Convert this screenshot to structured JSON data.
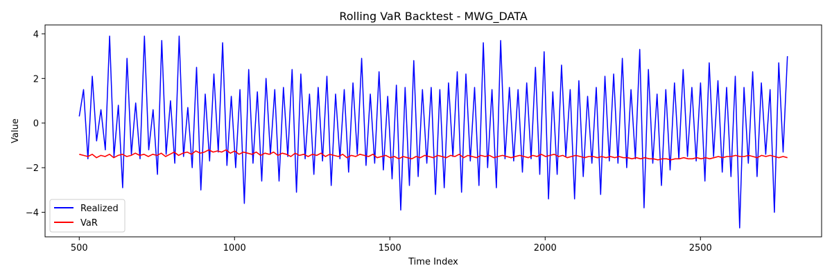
{
  "chart_data": {
    "type": "line",
    "title": "Rolling VaR Backtest - MWG_DATA",
    "xlabel": "Time Index",
    "ylabel": "Value",
    "xlim": [
      390,
      2890
    ],
    "ylim": [
      -5.1,
      4.4
    ],
    "xticks": [
      500,
      1000,
      1500,
      2000,
      2500
    ],
    "yticks": [
      -4,
      -2,
      0,
      2,
      4
    ],
    "grid": false,
    "legend_position": "lower-left",
    "x_range": [
      500,
      2780
    ],
    "series": [
      {
        "name": "Realized",
        "color": "#0000ff",
        "sampling": "approximate, every 20 time steps",
        "values": [
          0.3,
          1.5,
          -1.6,
          2.1,
          -0.8,
          0.6,
          -1.2,
          3.9,
          -1.5,
          0.8,
          -2.9,
          2.9,
          -1.4,
          0.9,
          -1.6,
          3.9,
          -1.2,
          0.6,
          -2.3,
          3.7,
          -1.4,
          1.0,
          -1.8,
          3.9,
          -1.5,
          0.7,
          -2.0,
          2.5,
          -3.0,
          1.3,
          -1.7,
          2.2,
          -1.3,
          3.6,
          -1.9,
          1.2,
          -2.0,
          1.5,
          -3.6,
          2.4,
          -1.8,
          1.4,
          -2.6,
          2.0,
          -1.4,
          1.5,
          -2.6,
          1.6,
          -1.5,
          2.4,
          -3.1,
          2.2,
          -1.6,
          1.3,
          -2.3,
          1.6,
          -1.7,
          2.1,
          -2.8,
          1.3,
          -1.6,
          1.5,
          -2.2,
          1.8,
          -1.4,
          2.9,
          -1.9,
          1.3,
          -1.8,
          2.3,
          -2.1,
          1.2,
          -2.5,
          1.7,
          -3.9,
          1.6,
          -2.8,
          2.8,
          -2.4,
          1.5,
          -1.8,
          1.6,
          -3.2,
          1.5,
          -2.9,
          1.8,
          -1.5,
          2.3,
          -3.1,
          2.2,
          -1.7,
          1.6,
          -2.8,
          3.6,
          -2.0,
          1.5,
          -2.9,
          3.7,
          -1.6,
          1.6,
          -1.7,
          1.5,
          -2.2,
          1.8,
          -1.6,
          2.5,
          -2.3,
          3.2,
          -3.4,
          1.4,
          -2.3,
          2.6,
          -1.5,
          1.5,
          -3.4,
          1.9,
          -2.4,
          1.2,
          -1.8,
          1.6,
          -3.2,
          2.1,
          -1.7,
          2.2,
          -1.8,
          2.9,
          -2.0,
          1.5,
          -1.6,
          3.3,
          -3.8,
          2.4,
          -1.8,
          1.3,
          -2.8,
          1.5,
          -2.1,
          1.8,
          -1.6,
          2.4,
          -1.5,
          1.6,
          -1.7,
          1.8,
          -2.6,
          2.7,
          -1.5,
          1.9,
          -2.2,
          1.6,
          -2.4,
          2.1,
          -4.7,
          1.6,
          -1.8,
          2.3,
          -2.4,
          1.8,
          -1.4,
          1.5,
          -4.0,
          2.7,
          -1.3,
          3.0
        ]
      },
      {
        "name": "VaR",
        "color": "#ff0000",
        "sampling": "approximate, every 20 time steps",
        "values": [
          -1.4,
          -1.45,
          -1.5,
          -1.4,
          -1.55,
          -1.45,
          -1.5,
          -1.4,
          -1.55,
          -1.45,
          -1.4,
          -1.5,
          -1.45,
          -1.35,
          -1.45,
          -1.4,
          -1.5,
          -1.4,
          -1.45,
          -1.35,
          -1.5,
          -1.4,
          -1.3,
          -1.45,
          -1.35,
          -1.3,
          -1.4,
          -1.25,
          -1.35,
          -1.3,
          -1.2,
          -1.3,
          -1.25,
          -1.3,
          -1.2,
          -1.35,
          -1.25,
          -1.4,
          -1.3,
          -1.35,
          -1.4,
          -1.3,
          -1.45,
          -1.35,
          -1.4,
          -1.3,
          -1.45,
          -1.35,
          -1.4,
          -1.5,
          -1.35,
          -1.45,
          -1.4,
          -1.5,
          -1.4,
          -1.45,
          -1.35,
          -1.5,
          -1.4,
          -1.45,
          -1.5,
          -1.4,
          -1.55,
          -1.45,
          -1.5,
          -1.4,
          -1.45,
          -1.5,
          -1.4,
          -1.55,
          -1.5,
          -1.45,
          -1.55,
          -1.5,
          -1.6,
          -1.5,
          -1.55,
          -1.6,
          -1.5,
          -1.55,
          -1.45,
          -1.5,
          -1.55,
          -1.45,
          -1.5,
          -1.55,
          -1.45,
          -1.5,
          -1.4,
          -1.55,
          -1.45,
          -1.5,
          -1.55,
          -1.45,
          -1.5,
          -1.45,
          -1.55,
          -1.5,
          -1.45,
          -1.5,
          -1.55,
          -1.5,
          -1.45,
          -1.5,
          -1.55,
          -1.45,
          -1.5,
          -1.4,
          -1.5,
          -1.45,
          -1.4,
          -1.5,
          -1.45,
          -1.55,
          -1.5,
          -1.45,
          -1.5,
          -1.55,
          -1.5,
          -1.5,
          -1.55,
          -1.5,
          -1.55,
          -1.5,
          -1.55,
          -1.5,
          -1.55,
          -1.55,
          -1.6,
          -1.55,
          -1.6,
          -1.55,
          -1.6,
          -1.6,
          -1.65,
          -1.6,
          -1.6,
          -1.65,
          -1.6,
          -1.6,
          -1.55,
          -1.6,
          -1.6,
          -1.55,
          -1.6,
          -1.55,
          -1.6,
          -1.55,
          -1.5,
          -1.55,
          -1.5,
          -1.5,
          -1.45,
          -1.5,
          -1.5,
          -1.45,
          -1.5,
          -1.55,
          -1.45,
          -1.5,
          -1.45,
          -1.5,
          -1.55,
          -1.5,
          -1.55
        ]
      }
    ]
  }
}
